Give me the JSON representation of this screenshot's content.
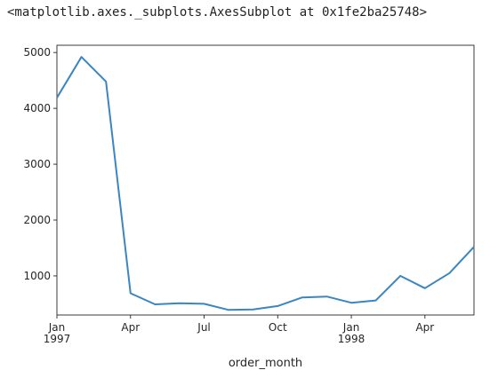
{
  "repr_text": "<matplotlib.axes._subplots.AxesSubplot at 0x1fe2ba25748>",
  "chart_data": {
    "type": "line",
    "xlabel": "order_month",
    "ylabel": "",
    "title": "",
    "x": [
      "1997-01",
      "1997-02",
      "1997-03",
      "1997-04",
      "1997-05",
      "1997-06",
      "1997-07",
      "1997-08",
      "1997-09",
      "1997-10",
      "1997-11",
      "1997-12",
      "1998-01",
      "1998-02",
      "1998-03",
      "1998-04",
      "1998-05",
      "1998-06"
    ],
    "series": [
      {
        "values": [
          4190,
          4920,
          4480,
          690,
          490,
          510,
          500,
          390,
          400,
          460,
          615,
          630,
          520,
          560,
          1000,
          780,
          1050,
          1520
        ],
        "color": "#3b86c0"
      }
    ],
    "ylim": [
      300,
      5130
    ],
    "yticks": [
      1000,
      2000,
      3000,
      4000,
      5000
    ],
    "yticklabels": [
      "1000",
      "2000",
      "3000",
      "4000",
      "5000"
    ],
    "xticks": [
      {
        "at": "1997-01",
        "label": "Jan",
        "sublabel": "1997"
      },
      {
        "at": "1997-04",
        "label": "Apr",
        "sublabel": ""
      },
      {
        "at": "1997-07",
        "label": "Jul",
        "sublabel": ""
      },
      {
        "at": "1997-10",
        "label": "Oct",
        "sublabel": ""
      },
      {
        "at": "1998-01",
        "label": "Jan",
        "sublabel": "1998"
      },
      {
        "at": "1998-04",
        "label": "Apr",
        "sublabel": ""
      }
    ],
    "grid": false,
    "legend": "none"
  }
}
